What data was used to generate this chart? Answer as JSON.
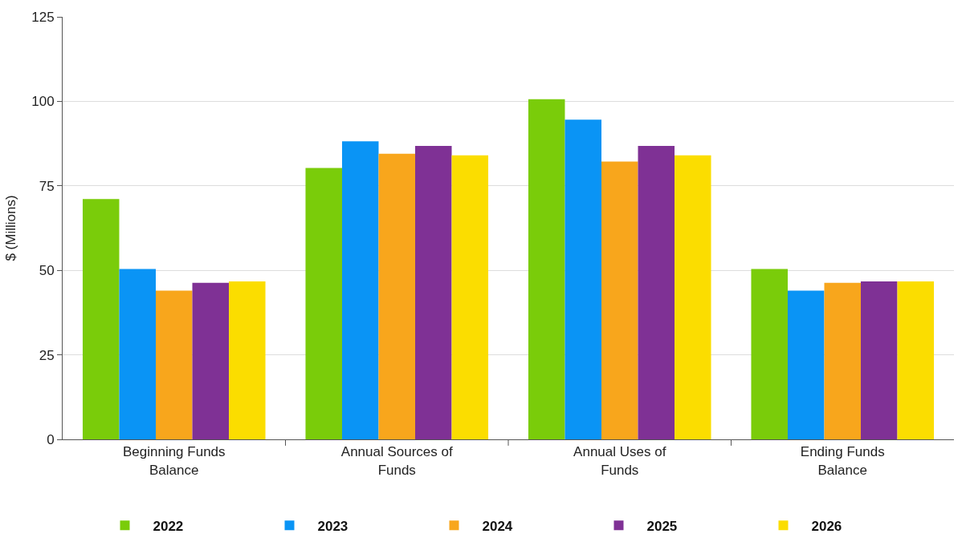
{
  "chart_data": {
    "type": "bar",
    "ylabel": "$ (Millions)",
    "categories": [
      "Beginning Funds Balance",
      "Annual Sources of Funds",
      "Annual Uses of Funds",
      "Ending Funds Balance"
    ],
    "series": [
      {
        "name": "2022",
        "color": "#7acc0a",
        "values": [
          71.1,
          80.3,
          100.6,
          50.4
        ]
      },
      {
        "name": "2023",
        "color": "#0a94f5",
        "values": [
          50.4,
          88.2,
          94.6,
          44.0
        ]
      },
      {
        "name": "2024",
        "color": "#f8a61c",
        "values": [
          44.0,
          84.5,
          82.2,
          46.3
        ]
      },
      {
        "name": "2025",
        "color": "#7f3195",
        "values": [
          46.3,
          86.8,
          86.8,
          46.7
        ]
      },
      {
        "name": "2026",
        "color": "#fbdd00",
        "values": [
          46.7,
          84.0,
          84.0,
          46.7
        ]
      }
    ],
    "ylim": [
      0,
      125
    ],
    "yticks": [
      0,
      25,
      50,
      75,
      100,
      125
    ],
    "grid": "y",
    "legend": "bottom"
  }
}
